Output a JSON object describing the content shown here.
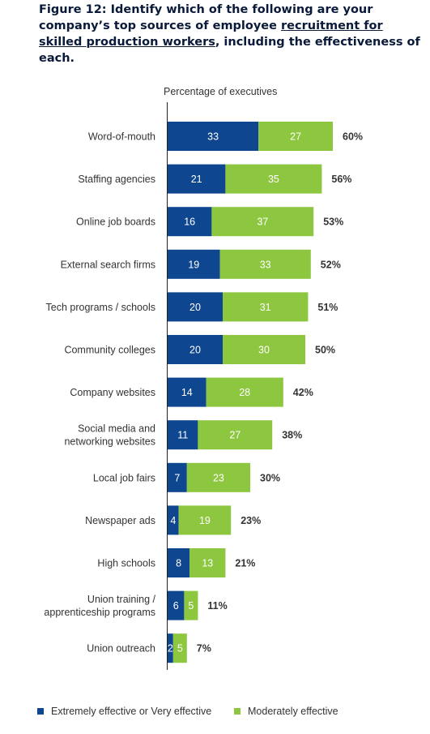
{
  "figure": {
    "title_pre": "Figure 12: Identify which of the following are your company’s top sources of employee ",
    "title_underlined": "recruitment for skilled production workers",
    "title_post": ", including the effectiveness of each."
  },
  "colors": {
    "dark": "#0f4690",
    "light": "#8dc63f"
  },
  "chart_data": {
    "type": "bar",
    "orientation": "horizontal",
    "stacked": true,
    "ylabel": "Percentage of executives",
    "categories": [
      "Word-of-mouth",
      "Staffing agencies",
      "Online job boards",
      "External search firms",
      "Tech programs / schools",
      "Community colleges",
      "Company websites",
      "Social media and\nnetworking websites",
      "Local job fairs",
      "Newspaper ads",
      "High schools",
      "Union training /\napprenticeship  programs",
      "Union outreach"
    ],
    "series": [
      {
        "name": "Extremely effective or Very effective",
        "values": [
          33,
          21,
          16,
          19,
          20,
          20,
          14,
          11,
          7,
          4,
          8,
          6,
          2
        ]
      },
      {
        "name": "Moderately effective",
        "values": [
          27,
          35,
          37,
          33,
          31,
          30,
          28,
          27,
          23,
          19,
          13,
          5,
          5
        ]
      }
    ],
    "totals": [
      "60%",
      "56%",
      "53%",
      "52%",
      "51%",
      "50%",
      "42%",
      "38%",
      "30%",
      "23%",
      "21%",
      "11%",
      "7%"
    ],
    "legend": {
      "position": "bottom"
    }
  }
}
